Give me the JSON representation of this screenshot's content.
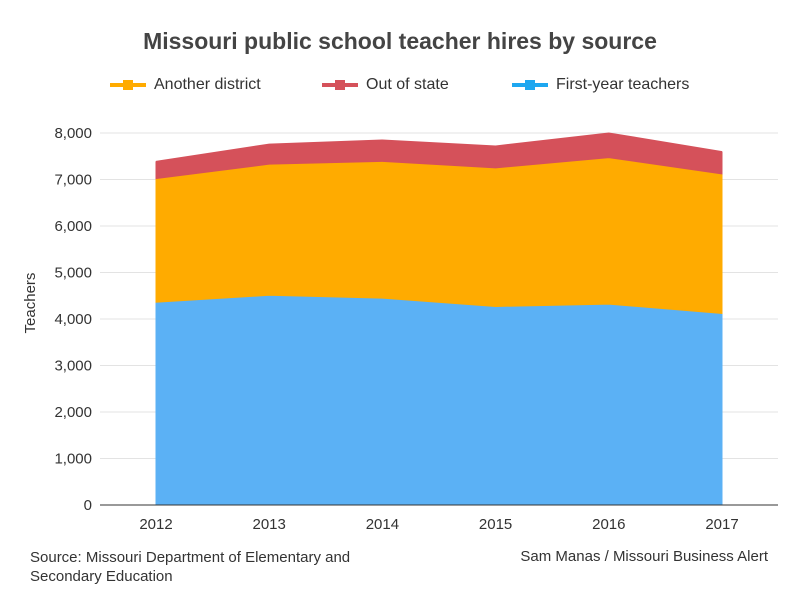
{
  "chart_data": {
    "type": "area",
    "stacked": true,
    "title": "Missouri public school teacher hires by source",
    "ylabel": "Teachers",
    "xlabel": "",
    "x": [
      "2012",
      "2013",
      "2014",
      "2015",
      "2016",
      "2017"
    ],
    "ylim": [
      0,
      8000
    ],
    "yticks": [
      0,
      1000,
      2000,
      3000,
      4000,
      5000,
      6000,
      7000,
      8000
    ],
    "ytick_labels": [
      "0",
      "1,000",
      "2,000",
      "3,000",
      "4,000",
      "5,000",
      "6,000",
      "7,000",
      "8,000"
    ],
    "grid": true,
    "legend_position": "top",
    "series": [
      {
        "name": "First-year teachers",
        "color": "#5bb1f5",
        "legend_color": "#1ea7f0",
        "values": [
          4360,
          4510,
          4450,
          4270,
          4320,
          4120
        ]
      },
      {
        "name": "Another district",
        "color": "#ffab00",
        "legend_color": "#ffab00",
        "values": [
          2660,
          2820,
          2940,
          2980,
          3150,
          3000
        ]
      },
      {
        "name": "Out of state",
        "color": "#d5515a",
        "legend_color": "#d5515a",
        "values": [
          360,
          420,
          450,
          460,
          520,
          470
        ]
      }
    ],
    "legend_order": [
      1,
      2,
      0
    ]
  },
  "footer": {
    "source": "Source: Missouri Department of Elementary and Secondary Education",
    "credit": "Sam Manas / Missouri Business Alert"
  }
}
